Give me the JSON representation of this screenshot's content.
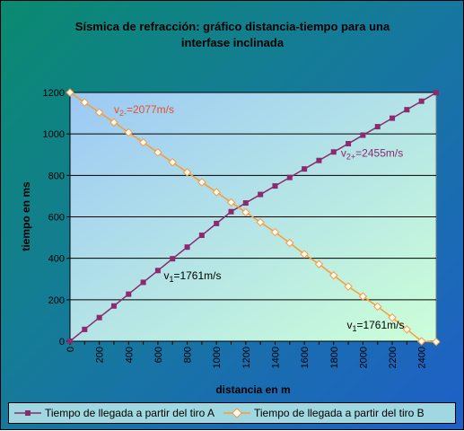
{
  "chart_data": {
    "type": "line",
    "title_line1": "Sísmica de refracción: gráfico distancia-tiempo para una",
    "title_line2": "interfase inclinada",
    "xlabel": "distancia en m",
    "ylabel": "tiempo en ms",
    "xlim": [
      0,
      2500
    ],
    "ylim": [
      0,
      1200
    ],
    "x_ticks": [
      "0",
      "200",
      "400",
      "600",
      "800",
      "1000",
      "1200",
      "1400",
      "1600",
      "1800",
      "2000",
      "2200",
      "2400"
    ],
    "y_ticks": [
      "0",
      "200",
      "400",
      "600",
      "800",
      "1000",
      "1200"
    ],
    "grid": "horizontal",
    "legend_position": "bottom",
    "series": [
      {
        "name": "Tiempo de llegada a partir del tiro A",
        "color": "#8b2a6e",
        "marker": "square",
        "x": [
          0,
          100,
          200,
          300,
          400,
          500,
          600,
          700,
          800,
          900,
          1000,
          1100,
          1200,
          1300,
          1400,
          1500,
          1600,
          1700,
          1800,
          1900,
          2000,
          2100,
          2200,
          2300,
          2400,
          2500
        ],
        "y": [
          0,
          57,
          114,
          170,
          227,
          284,
          341,
          398,
          454,
          511,
          568,
          625,
          667,
          708,
          749,
          790,
          831,
          872,
          913,
          953,
          994,
          1035,
          1076,
          1117,
          1158,
          1199
        ]
      },
      {
        "name": "Tiempo de llegada a partir del tiro B",
        "color": "#ff9933",
        "marker": "diamond",
        "x": [
          0,
          100,
          200,
          300,
          400,
          500,
          600,
          700,
          800,
          900,
          1000,
          1100,
          1200,
          1300,
          1400,
          1500,
          1600,
          1700,
          1800,
          1900,
          2000,
          2100,
          2200,
          2300,
          2400,
          2500
        ],
        "y": [
          1200,
          1152,
          1104,
          1056,
          1007,
          959,
          911,
          863,
          815,
          767,
          719,
          670,
          622,
          574,
          526,
          474,
          420,
          372,
          318,
          264,
          216,
          167,
          114,
          57,
          0,
          -3
        ]
      }
    ],
    "annotations": [
      {
        "text": "v2-=2077m/s",
        "x": 300,
        "y": 1100,
        "color": "#e8502a"
      },
      {
        "text": "v2+=2455m/s",
        "x": 1850,
        "y": 890,
        "color": "#8b2a6e"
      },
      {
        "text": "v1=1761m/s",
        "x": 640,
        "y": 300,
        "color": "#000000"
      },
      {
        "text": "v1=1761m/s",
        "x": 1890,
        "y": 60,
        "color": "#000000"
      }
    ]
  }
}
